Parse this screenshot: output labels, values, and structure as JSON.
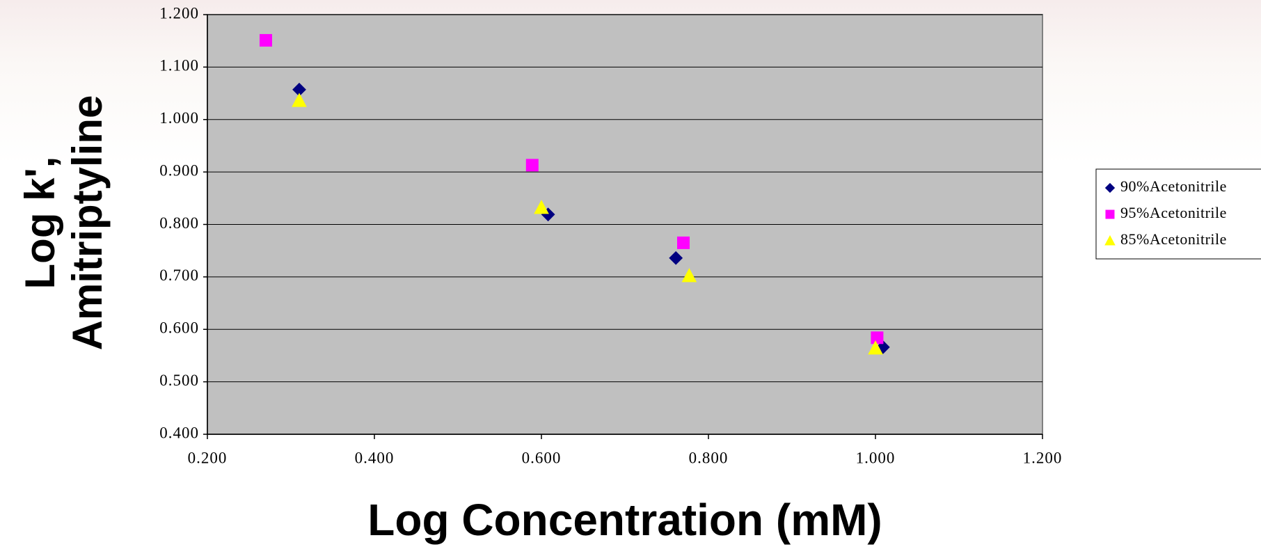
{
  "chart_data": {
    "type": "scatter",
    "xlabel": "Log Concentration (mM)",
    "ylabel": [
      "Log k',",
      "Amitriptyline"
    ],
    "xlim": [
      0.2,
      1.2
    ],
    "ylim": [
      0.4,
      1.2
    ],
    "xticks": [
      {
        "value": 0.2,
        "label": "0.200"
      },
      {
        "value": 0.4,
        "label": "0.400"
      },
      {
        "value": 0.6,
        "label": "0.600"
      },
      {
        "value": 0.8,
        "label": "0.800"
      },
      {
        "value": 1.0,
        "label": "1.000"
      },
      {
        "value": 1.2,
        "label": "1.200"
      }
    ],
    "yticks": [
      {
        "value": 0.4,
        "label": "0.400"
      },
      {
        "value": 0.5,
        "label": "0.500"
      },
      {
        "value": 0.6,
        "label": "0.600"
      },
      {
        "value": 0.7,
        "label": "0.700"
      },
      {
        "value": 0.8,
        "label": "0.800"
      },
      {
        "value": 0.9,
        "label": "0.900"
      },
      {
        "value": 1.0,
        "label": "1.000"
      },
      {
        "value": 1.1,
        "label": "1.100"
      },
      {
        "value": 1.2,
        "label": "1.200"
      }
    ],
    "grid": true,
    "legend": "right",
    "series": [
      {
        "name": "90%Acetonitrile",
        "color": "#000080",
        "marker": "diamond",
        "x": [
          0.31,
          0.608,
          0.761,
          1.009
        ],
        "values": [
          1.057,
          0.819,
          0.736,
          0.566
        ]
      },
      {
        "name": "95%Acetonitrile",
        "color": "#ff00ff",
        "marker": "square",
        "x": [
          0.27,
          0.589,
          0.77,
          1.002
        ],
        "values": [
          1.151,
          0.913,
          0.765,
          0.584
        ]
      },
      {
        "name": "85%Acetonitrile",
        "color": "#ffff00",
        "marker": "triangle",
        "x": [
          0.31,
          0.6,
          0.777,
          1.0
        ],
        "values": [
          1.036,
          0.832,
          0.702,
          0.564
        ]
      }
    ]
  }
}
